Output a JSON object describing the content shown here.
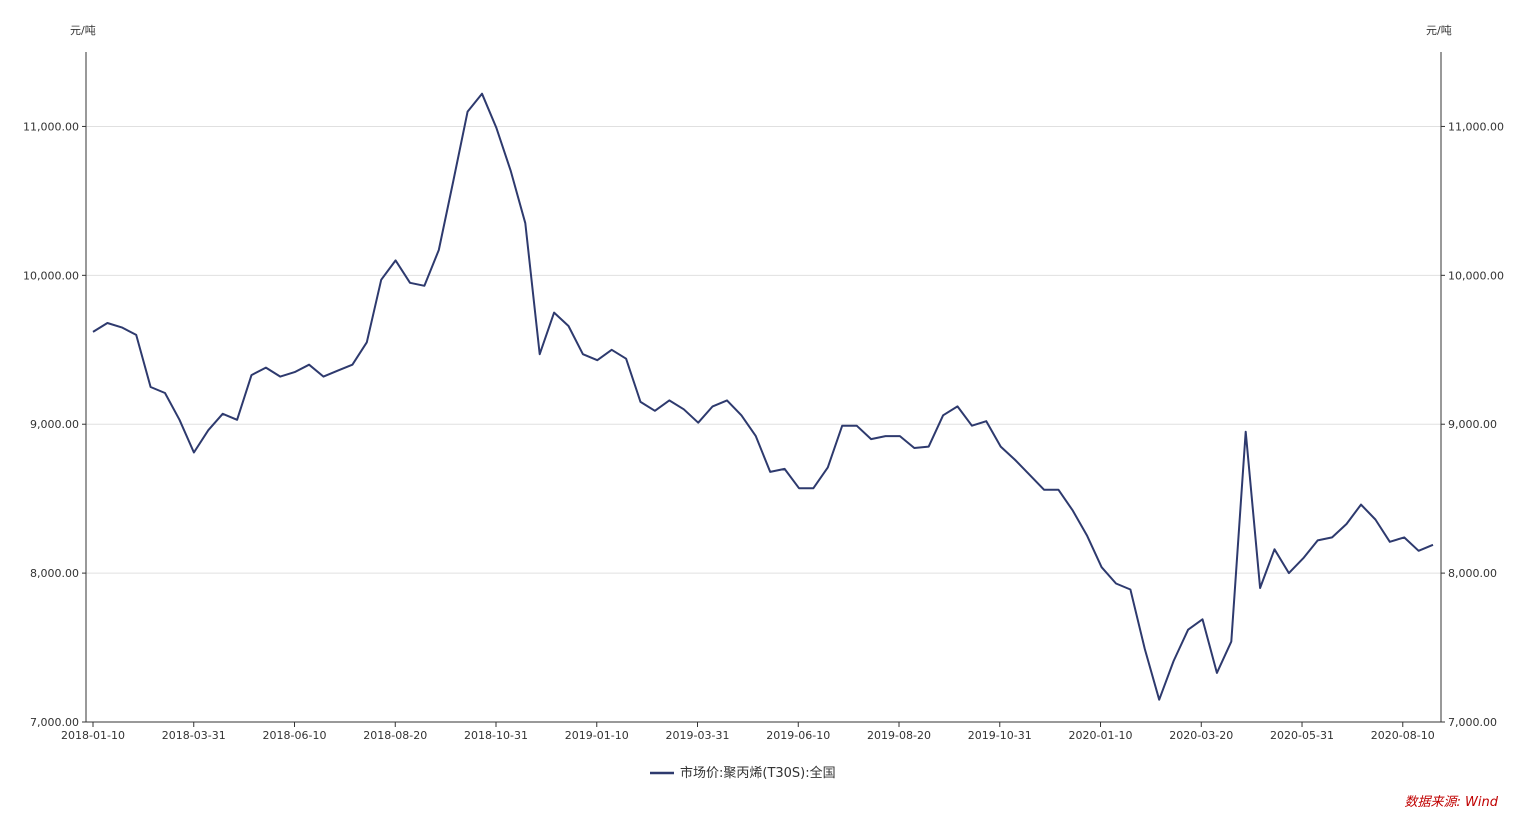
{
  "chart_data": {
    "type": "line",
    "y_unit_left": "元/吨",
    "y_unit_right": "元/吨",
    "ylim": [
      7000,
      11500
    ],
    "y_ticks": [
      7000,
      8000,
      9000,
      10000,
      11000
    ],
    "y_tick_labels": [
      "7,000.00",
      "8,000.00",
      "9,000.00",
      "10,000.00",
      "11,000.00"
    ],
    "x_tick_labels": [
      "2018-01-10",
      "2018-03-31",
      "2018-06-10",
      "2018-08-20",
      "2018-10-31",
      "2019-01-10",
      "2019-03-31",
      "2019-06-10",
      "2019-08-20",
      "2019-10-31",
      "2020-01-10",
      "2020-03-20",
      "2020-05-31",
      "2020-08-10"
    ],
    "grid": true,
    "legend_position": "bottom-center",
    "series": [
      {
        "name": "市场价:聚丙烯(T30S):全国",
        "color": "#2e3a6e",
        "values": [
          9620,
          9680,
          9650,
          9600,
          9250,
          9210,
          9030,
          8810,
          8960,
          9070,
          9030,
          9330,
          9380,
          9320,
          9350,
          9400,
          9320,
          9360,
          9400,
          9550,
          9970,
          10100,
          9950,
          9930,
          10170,
          10630,
          11100,
          11220,
          10990,
          10700,
          10350,
          9470,
          9750,
          9660,
          9470,
          9430,
          9500,
          9440,
          9150,
          9090,
          9160,
          9100,
          9010,
          9120,
          9160,
          9060,
          8920,
          8680,
          8700,
          8570,
          8570,
          8710,
          8990,
          8990,
          8900,
          8920,
          8920,
          8840,
          8850,
          9060,
          9120,
          8990,
          9020,
          8850,
          8760,
          8660,
          8560,
          8560,
          8420,
          8250,
          8040,
          7930,
          7890,
          7490,
          7150,
          7410,
          7620,
          7690,
          7330,
          7540,
          8950,
          7900,
          8160,
          8000,
          8100,
          8220,
          8240,
          8330,
          8460,
          8360,
          8210,
          8240,
          8150,
          8190
        ]
      }
    ]
  },
  "footer": {
    "source": "数据来源: Wind"
  }
}
